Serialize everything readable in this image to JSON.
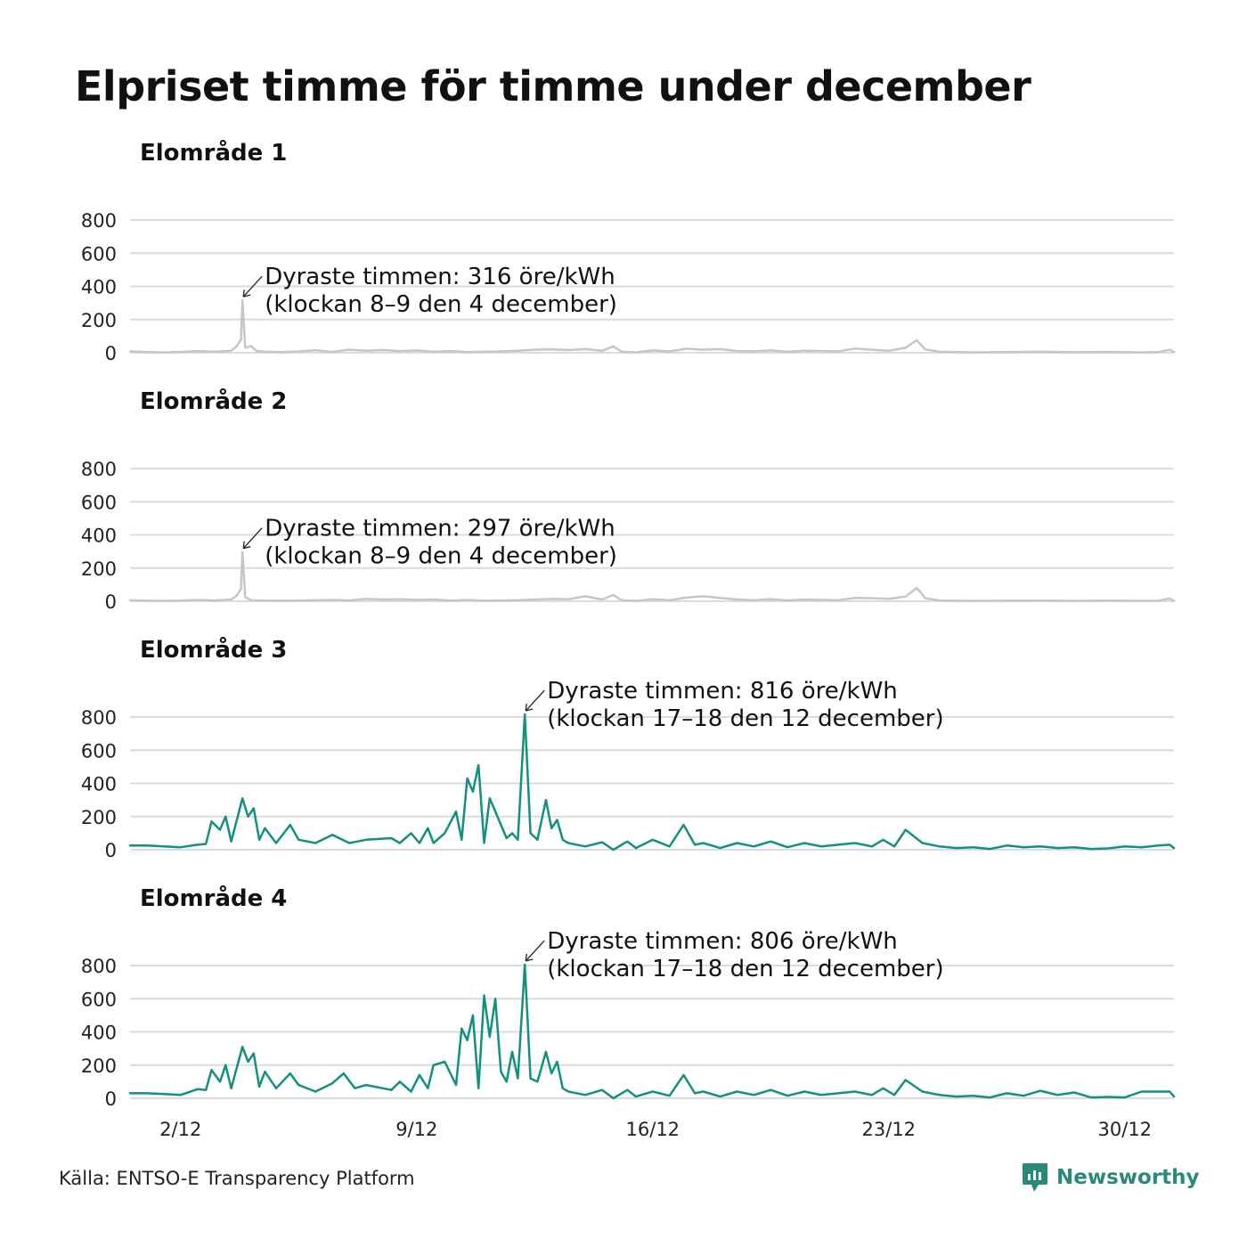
{
  "title": "Elpriset timme för timme under december",
  "source": "Källa: ENTSO-E Transparency Platform",
  "brand": "Newsworthy",
  "colors": {
    "highlight": "#13917e",
    "muted": "#c6c4cf",
    "grid": "#dcdcdc"
  },
  "chart_data": [
    {
      "type": "line",
      "title": "Elområde 1",
      "color": "muted",
      "ylim": [
        0,
        800
      ],
      "yticks": [
        0,
        200,
        400,
        600,
        800
      ],
      "xlim": [
        "2022-12-01 00:00",
        "2022-12-31 23:00"
      ],
      "annotation": {
        "line1": "Dyraste timmen: 316 öre/kWh",
        "line2": "(klockan 8–9 den 4 december)",
        "x": "2022-12-04 08:00",
        "y": 316
      },
      "series": [
        {
          "x": [
            "2022-12-01 00:00",
            "2022-12-01 12:00",
            "2022-12-02 00:00",
            "2022-12-02 12:00",
            "2022-12-03 00:00",
            "2022-12-03 12:00",
            "2022-12-04 00:00",
            "2022-12-04 04:00",
            "2022-12-04 07:00",
            "2022-12-04 08:00",
            "2022-12-04 10:00",
            "2022-12-04 14:00",
            "2022-12-04 18:00",
            "2022-12-05 00:00",
            "2022-12-05 12:00",
            "2022-12-06 00:00",
            "2022-12-06 12:00",
            "2022-12-07 00:00",
            "2022-12-07 12:00",
            "2022-12-08 00:00",
            "2022-12-08 12:00",
            "2022-12-09 00:00",
            "2022-12-09 12:00",
            "2022-12-10 00:00",
            "2022-12-10 12:00",
            "2022-12-11 00:00",
            "2022-12-11 12:00",
            "2022-12-12 00:00",
            "2022-12-12 12:00",
            "2022-12-13 00:00",
            "2022-12-13 12:00",
            "2022-12-14 00:00",
            "2022-12-14 12:00",
            "2022-12-15 00:00",
            "2022-12-15 08:00",
            "2022-12-15 14:00",
            "2022-12-16 00:00",
            "2022-12-16 12:00",
            "2022-12-17 00:00",
            "2022-12-17 12:00",
            "2022-12-18 00:00",
            "2022-12-18 12:00",
            "2022-12-19 00:00",
            "2022-12-19 12:00",
            "2022-12-20 00:00",
            "2022-12-20 12:00",
            "2022-12-21 00:00",
            "2022-12-21 12:00",
            "2022-12-22 00:00",
            "2022-12-22 12:00",
            "2022-12-23 00:00",
            "2022-12-23 12:00",
            "2022-12-24 00:00",
            "2022-12-24 08:00",
            "2022-12-24 14:00",
            "2022-12-25 00:00",
            "2022-12-25 12:00",
            "2022-12-26 00:00",
            "2022-12-27 00:00",
            "2022-12-28 00:00",
            "2022-12-29 00:00",
            "2022-12-30 00:00",
            "2022-12-31 00:00",
            "2022-12-31 12:00",
            "2022-12-31 20:00",
            "2022-12-31 23:00"
          ],
          "y": [
            8,
            4,
            2,
            5,
            10,
            6,
            12,
            40,
            80,
            316,
            30,
            40,
            10,
            6,
            4,
            8,
            15,
            5,
            18,
            12,
            16,
            10,
            14,
            6,
            10,
            4,
            6,
            8,
            12,
            18,
            20,
            16,
            22,
            12,
            38,
            6,
            2,
            14,
            8,
            24,
            18,
            22,
            10,
            8,
            14,
            6,
            12,
            10,
            8,
            25,
            18,
            12,
            30,
            75,
            20,
            6,
            4,
            2,
            4,
            6,
            3,
            5,
            2,
            4,
            18,
            4
          ]
        }
      ]
    },
    {
      "type": "line",
      "title": "Elområde 2",
      "color": "muted",
      "ylim": [
        0,
        800
      ],
      "yticks": [
        0,
        200,
        400,
        600,
        800
      ],
      "xlim": [
        "2022-12-01 00:00",
        "2022-12-31 23:00"
      ],
      "annotation": {
        "line1": "Dyraste timmen: 297 öre/kWh",
        "line2": "(klockan 8–9 den 4 december)",
        "x": "2022-12-04 08:00",
        "y": 297
      },
      "series": [
        {
          "x": [
            "2022-12-01 00:00",
            "2022-12-01 12:00",
            "2022-12-02 00:00",
            "2022-12-02 12:00",
            "2022-12-03 00:00",
            "2022-12-03 12:00",
            "2022-12-04 00:00",
            "2022-12-04 04:00",
            "2022-12-04 07:00",
            "2022-12-04 08:00",
            "2022-12-04 10:00",
            "2022-12-04 14:00",
            "2022-12-05 00:00",
            "2022-12-05 12:00",
            "2022-12-06 00:00",
            "2022-12-06 12:00",
            "2022-12-07 00:00",
            "2022-12-07 12:00",
            "2022-12-08 00:00",
            "2022-12-08 12:00",
            "2022-12-09 00:00",
            "2022-12-09 12:00",
            "2022-12-10 00:00",
            "2022-12-10 12:00",
            "2022-12-11 00:00",
            "2022-12-11 12:00",
            "2022-12-12 00:00",
            "2022-12-12 12:00",
            "2022-12-13 00:00",
            "2022-12-13 12:00",
            "2022-12-14 00:00",
            "2022-12-14 12:00",
            "2022-12-15 00:00",
            "2022-12-15 08:00",
            "2022-12-15 14:00",
            "2022-12-16 00:00",
            "2022-12-16 12:00",
            "2022-12-17 00:00",
            "2022-12-17 12:00",
            "2022-12-18 00:00",
            "2022-12-18 12:00",
            "2022-12-19 00:00",
            "2022-12-19 12:00",
            "2022-12-20 00:00",
            "2022-12-20 12:00",
            "2022-12-21 00:00",
            "2022-12-21 12:00",
            "2022-12-22 00:00",
            "2022-12-22 12:00",
            "2022-12-23 00:00",
            "2022-12-23 12:00",
            "2022-12-24 00:00",
            "2022-12-24 08:00",
            "2022-12-24 14:00",
            "2022-12-25 00:00",
            "2022-12-25 12:00",
            "2022-12-26 00:00",
            "2022-12-27 00:00",
            "2022-12-28 00:00",
            "2022-12-29 00:00",
            "2022-12-30 00:00",
            "2022-12-31 00:00",
            "2022-12-31 12:00",
            "2022-12-31 20:00",
            "2022-12-31 23:00"
          ],
          "y": [
            6,
            3,
            2,
            4,
            8,
            5,
            10,
            35,
            75,
            297,
            25,
            6,
            4,
            3,
            4,
            6,
            8,
            5,
            14,
            10,
            12,
            8,
            10,
            4,
            8,
            3,
            5,
            6,
            10,
            14,
            12,
            30,
            10,
            38,
            6,
            2,
            12,
            6,
            22,
            30,
            20,
            10,
            6,
            12,
            5,
            10,
            8,
            6,
            20,
            18,
            14,
            28,
            80,
            18,
            5,
            3,
            2,
            3,
            4,
            2,
            4,
            2,
            3,
            16,
            3
          ]
        }
      ]
    },
    {
      "type": "line",
      "title": "Elområde 3",
      "color": "highlight",
      "ylim": [
        0,
        800
      ],
      "yticks": [
        0,
        200,
        400,
        600,
        800
      ],
      "xlim": [
        "2022-12-01 00:00",
        "2022-12-31 23:00"
      ],
      "annotation": {
        "line1": "Dyraste timmen: 816 öre/kWh",
        "line2": "(klockan 17–18 den 12 december)",
        "x": "2022-12-12 17:00",
        "y": 816
      },
      "series": [
        {
          "x": [
            "2022-12-01 00:00",
            "2022-12-01 12:00",
            "2022-12-02 00:00",
            "2022-12-02 12:00",
            "2022-12-03 00:00",
            "2022-12-03 06:00",
            "2022-12-03 10:00",
            "2022-12-03 16:00",
            "2022-12-03 20:00",
            "2022-12-04 00:00",
            "2022-12-04 08:00",
            "2022-12-04 12:00",
            "2022-12-04 16:00",
            "2022-12-04 20:00",
            "2022-12-05 00:00",
            "2022-12-05 08:00",
            "2022-12-05 18:00",
            "2022-12-06 00:00",
            "2022-12-06 12:00",
            "2022-12-07 00:00",
            "2022-12-07 12:00",
            "2022-12-08 00:00",
            "2022-12-08 18:00",
            "2022-12-09 00:00",
            "2022-12-09 08:00",
            "2022-12-09 14:00",
            "2022-12-09 20:00",
            "2022-12-10 00:00",
            "2022-12-10 08:00",
            "2022-12-10 16:00",
            "2022-12-10 20:00",
            "2022-12-11 00:00",
            "2022-12-11 04:00",
            "2022-12-11 08:00",
            "2022-12-11 12:00",
            "2022-12-11 16:00",
            "2022-12-11 22:00",
            "2022-12-12 04:00",
            "2022-12-12 08:00",
            "2022-12-12 12:00",
            "2022-12-12 17:00",
            "2022-12-12 21:00",
            "2022-12-13 02:00",
            "2022-12-13 08:00",
            "2022-12-13 12:00",
            "2022-12-13 16:00",
            "2022-12-13 20:00",
            "2022-12-14 00:00",
            "2022-12-14 12:00",
            "2022-12-15 00:00",
            "2022-12-15 08:00",
            "2022-12-15 18:00",
            "2022-12-16 00:00",
            "2022-12-16 12:00",
            "2022-12-17 00:00",
            "2022-12-17 10:00",
            "2022-12-17 18:00",
            "2022-12-18 00:00",
            "2022-12-18 12:00",
            "2022-12-19 00:00",
            "2022-12-19 12:00",
            "2022-12-20 00:00",
            "2022-12-20 12:00",
            "2022-12-21 00:00",
            "2022-12-21 12:00",
            "2022-12-22 00:00",
            "2022-12-22 12:00",
            "2022-12-23 00:00",
            "2022-12-23 08:00",
            "2022-12-23 16:00",
            "2022-12-24 00:00",
            "2022-12-24 12:00",
            "2022-12-25 00:00",
            "2022-12-25 12:00",
            "2022-12-26 00:00",
            "2022-12-26 12:00",
            "2022-12-27 00:00",
            "2022-12-27 12:00",
            "2022-12-28 00:00",
            "2022-12-28 12:00",
            "2022-12-29 00:00",
            "2022-12-29 12:00",
            "2022-12-30 00:00",
            "2022-12-30 12:00",
            "2022-12-31 00:00",
            "2022-12-31 12:00",
            "2022-12-31 20:00",
            "2022-12-31 23:00"
          ],
          "y": [
            25,
            25,
            20,
            15,
            30,
            35,
            170,
            120,
            200,
            50,
            310,
            200,
            250,
            60,
            130,
            40,
            150,
            60,
            40,
            90,
            40,
            60,
            70,
            40,
            100,
            40,
            130,
            40,
            100,
            230,
            60,
            430,
            350,
            510,
            40,
            310,
            190,
            70,
            100,
            60,
            816,
            100,
            60,
            300,
            130,
            180,
            60,
            40,
            20,
            45,
            0,
            50,
            10,
            60,
            20,
            150,
            30,
            40,
            10,
            40,
            20,
            50,
            15,
            40,
            20,
            30,
            40,
            20,
            60,
            20,
            120,
            40,
            20,
            10,
            15,
            5,
            25,
            15,
            20,
            10,
            15,
            5,
            8,
            20,
            15,
            25,
            30,
            10
          ]
        }
      ]
    },
    {
      "type": "line",
      "title": "Elområde 4",
      "color": "highlight",
      "ylim": [
        0,
        800
      ],
      "yticks": [
        0,
        200,
        400,
        600,
        800
      ],
      "xlim": [
        "2022-12-01 00:00",
        "2022-12-31 23:00"
      ],
      "xticks": [
        "2/12",
        "9/12",
        "16/12",
        "23/12",
        "30/12"
      ],
      "annotation": {
        "line1": "Dyraste timmen: 806 öre/kWh",
        "line2": "(klockan 17–18 den 12 december)",
        "x": "2022-12-12 17:00",
        "y": 806
      },
      "series": [
        {
          "x": [
            "2022-12-01 00:00",
            "2022-12-01 12:00",
            "2022-12-02 00:00",
            "2022-12-02 12:00",
            "2022-12-03 00:00",
            "2022-12-03 06:00",
            "2022-12-03 10:00",
            "2022-12-03 16:00",
            "2022-12-03 20:00",
            "2022-12-04 00:00",
            "2022-12-04 08:00",
            "2022-12-04 12:00",
            "2022-12-04 16:00",
            "2022-12-04 20:00",
            "2022-12-05 00:00",
            "2022-12-05 08:00",
            "2022-12-05 18:00",
            "2022-12-06 00:00",
            "2022-12-06 12:00",
            "2022-12-07 00:00",
            "2022-12-07 08:00",
            "2022-12-07 16:00",
            "2022-12-08 00:00",
            "2022-12-08 18:00",
            "2022-12-09 00:00",
            "2022-12-09 08:00",
            "2022-12-09 14:00",
            "2022-12-09 20:00",
            "2022-12-10 00:00",
            "2022-12-10 08:00",
            "2022-12-10 16:00",
            "2022-12-10 20:00",
            "2022-12-11 00:00",
            "2022-12-11 04:00",
            "2022-12-11 08:00",
            "2022-12-11 12:00",
            "2022-12-11 16:00",
            "2022-12-11 20:00",
            "2022-12-12 00:00",
            "2022-12-12 04:00",
            "2022-12-12 08:00",
            "2022-12-12 12:00",
            "2022-12-12 17:00",
            "2022-12-12 21:00",
            "2022-12-13 02:00",
            "2022-12-13 08:00",
            "2022-12-13 12:00",
            "2022-12-13 16:00",
            "2022-12-13 20:00",
            "2022-12-14 00:00",
            "2022-12-14 12:00",
            "2022-12-15 00:00",
            "2022-12-15 08:00",
            "2022-12-15 18:00",
            "2022-12-16 00:00",
            "2022-12-16 12:00",
            "2022-12-17 00:00",
            "2022-12-17 10:00",
            "2022-12-17 18:00",
            "2022-12-18 00:00",
            "2022-12-18 12:00",
            "2022-12-19 00:00",
            "2022-12-19 12:00",
            "2022-12-20 00:00",
            "2022-12-20 12:00",
            "2022-12-21 00:00",
            "2022-12-21 12:00",
            "2022-12-22 00:00",
            "2022-12-22 12:00",
            "2022-12-23 00:00",
            "2022-12-23 08:00",
            "2022-12-23 16:00",
            "2022-12-24 00:00",
            "2022-12-24 12:00",
            "2022-12-25 00:00",
            "2022-12-25 12:00",
            "2022-12-26 00:00",
            "2022-12-26 12:00",
            "2022-12-27 00:00",
            "2022-12-27 12:00",
            "2022-12-28 00:00",
            "2022-12-28 12:00",
            "2022-12-29 00:00",
            "2022-12-29 12:00",
            "2022-12-30 00:00",
            "2022-12-30 12:00",
            "2022-12-31 00:00",
            "2022-12-31 12:00",
            "2022-12-31 20:00",
            "2022-12-31 23:00"
          ],
          "y": [
            30,
            30,
            25,
            20,
            55,
            50,
            170,
            100,
            200,
            60,
            310,
            220,
            270,
            70,
            160,
            60,
            150,
            80,
            40,
            90,
            150,
            60,
            80,
            50,
            100,
            40,
            140,
            60,
            200,
            220,
            80,
            420,
            350,
            500,
            60,
            620,
            370,
            600,
            160,
            100,
            280,
            120,
            806,
            120,
            100,
            280,
            150,
            220,
            60,
            40,
            20,
            50,
            0,
            50,
            10,
            40,
            15,
            140,
            30,
            40,
            10,
            40,
            20,
            50,
            15,
            40,
            20,
            30,
            40,
            20,
            60,
            20,
            110,
            40,
            20,
            10,
            15,
            5,
            30,
            15,
            45,
            20,
            35,
            5,
            8,
            5,
            40,
            40,
            40,
            10
          ]
        }
      ]
    }
  ]
}
